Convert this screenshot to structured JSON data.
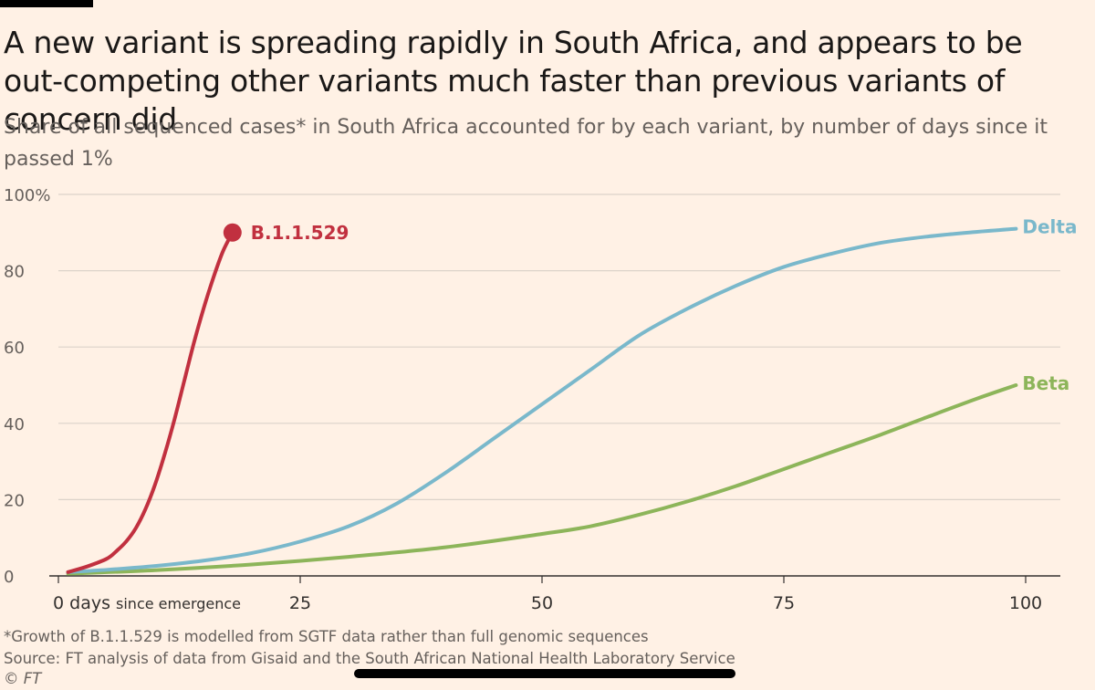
{
  "header": {
    "title": "A new variant is spreading rapidly in South Africa, and appears to be out-competing other variants much faster than previous variants of concern did",
    "subtitle": "Share of all sequenced cases* in South Africa accounted for by each variant, by number of days since it passed 1%"
  },
  "footer": {
    "note": "*Growth of B.1.1.529 is modelled from SGTF data rather than full genomic sequences",
    "source": "Source: FT analysis of data from Gisaid and the South African National Health Laboratory Service",
    "copyright": "© FT"
  },
  "colors": {
    "background": "#fff1e5",
    "b11529": "#c1303f",
    "delta": "#7ab8cb",
    "beta": "#8db55a",
    "grid": "#dcd3ca",
    "axis": "#33302e"
  },
  "chart_data": {
    "type": "line",
    "title": "Share of all sequenced cases* in South Africa accounted for by each variant, by number of days since it passed 1%",
    "xlabel": "days since emergence",
    "ylabel": "",
    "xlim": [
      0,
      100
    ],
    "ylim": [
      0,
      100
    ],
    "x_ticks": [
      {
        "value": 0,
        "label": "0 days",
        "suffix": "since emergence"
      },
      {
        "value": 25,
        "label": "25"
      },
      {
        "value": 50,
        "label": "50"
      },
      {
        "value": 75,
        "label": "75"
      },
      {
        "value": 100,
        "label": "100"
      }
    ],
    "y_ticks": [
      {
        "value": 0,
        "label": "0"
      },
      {
        "value": 20,
        "label": "20"
      },
      {
        "value": 40,
        "label": "40"
      },
      {
        "value": 60,
        "label": "60"
      },
      {
        "value": 80,
        "label": "80"
      },
      {
        "value": 100,
        "label": "100%"
      }
    ],
    "grid": true,
    "series": [
      {
        "name": "B.1.1.529",
        "label_position": "end-right",
        "end_marker": true,
        "x": [
          1,
          3,
          5,
          6,
          7,
          8,
          9,
          10,
          11,
          12,
          13,
          14,
          15,
          16,
          17,
          18
        ],
        "y": [
          1,
          2.5,
          4.5,
          6.5,
          9,
          12.5,
          17.5,
          24,
          32,
          41,
          51,
          61,
          70,
          78,
          85,
          90
        ]
      },
      {
        "name": "Delta",
        "label_position": "end-right",
        "end_marker": false,
        "x": [
          1,
          5,
          10,
          15,
          20,
          25,
          30,
          35,
          40,
          45,
          50,
          55,
          60,
          65,
          70,
          75,
          80,
          85,
          90,
          95,
          99
        ],
        "y": [
          1,
          1.6,
          2.6,
          4,
          6,
          9,
          13,
          19,
          27,
          36,
          45,
          54,
          63,
          70,
          76,
          81,
          84.5,
          87.3,
          89,
          90.2,
          91
        ]
      },
      {
        "name": "Beta",
        "label_position": "end-right",
        "end_marker": false,
        "x": [
          1,
          10,
          20,
          30,
          40,
          50,
          55,
          60,
          65,
          70,
          75,
          80,
          85,
          90,
          95,
          99
        ],
        "y": [
          0.6,
          1.5,
          3,
          5,
          7.5,
          11,
          13,
          16,
          19.5,
          23.5,
          28,
          32.5,
          37,
          41.8,
          46.5,
          50
        ]
      }
    ]
  }
}
